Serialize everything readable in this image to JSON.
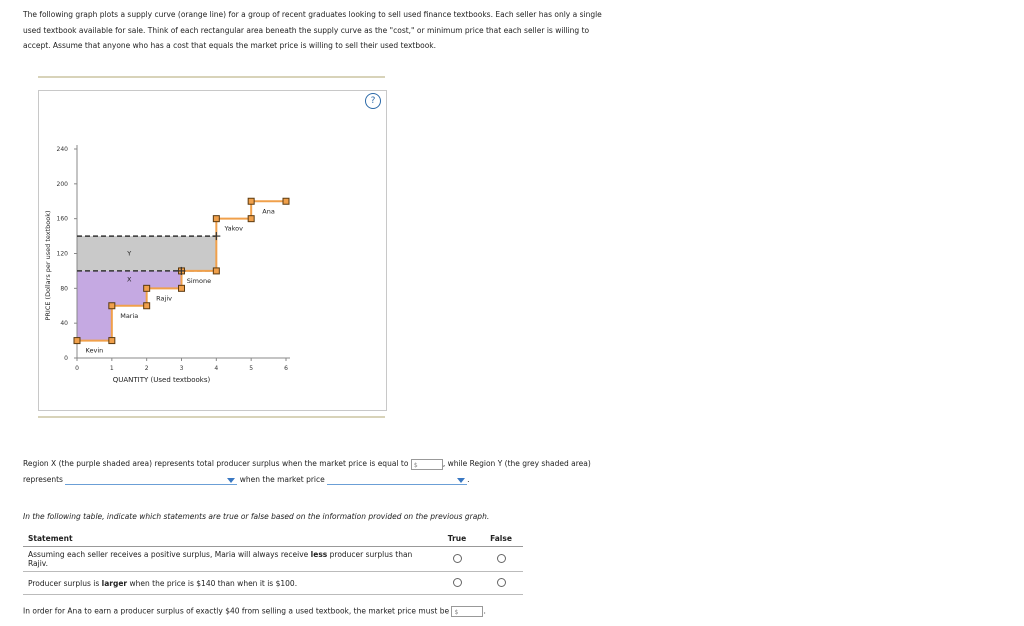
{
  "intro_text": "The following graph plots a supply curve (orange line) for a group of recent graduates looking to sell used finance textbooks. Each seller has only a single used textbook available for sale. Think of each rectangular area beneath the supply curve as the \"cost,\" or minimum price that each seller is willing to accept. Assume that anyone who has a cost that equals the market price is willing to sell their used textbook.",
  "help_label": "?",
  "chart_data": {
    "type": "line",
    "xlabel": "QUANTITY (Used textbooks)",
    "ylabel": "PRICE (Dollars per used textbook)",
    "xlim": [
      0,
      6
    ],
    "ylim": [
      0,
      240
    ],
    "x_ticks": [
      "0",
      "1",
      "2",
      "3",
      "4",
      "5",
      "6"
    ],
    "y_ticks": [
      "0",
      "40",
      "80",
      "120",
      "160",
      "200",
      "240"
    ],
    "supply_steps": [
      {
        "name": "Kevin",
        "q_start": 0,
        "q_end": 1,
        "price": 20
      },
      {
        "name": "Maria",
        "q_start": 1,
        "q_end": 2,
        "price": 60
      },
      {
        "name": "Rajiv",
        "q_start": 2,
        "q_end": 3,
        "price": 80
      },
      {
        "name": "Simone",
        "q_start": 3,
        "q_end": 4,
        "price": 100
      },
      {
        "name": "Yakov",
        "q_start": 4,
        "q_end": 5,
        "price": 160
      },
      {
        "name": "Ana",
        "q_start": 5,
        "q_end": 6,
        "price": 180
      }
    ],
    "price_lines": [
      100,
      140
    ],
    "regions": [
      {
        "label": "X",
        "color": "#c5a9e2",
        "lower_price": 0,
        "upper_price": 100
      },
      {
        "label": "Y",
        "color": "#c9c9c9",
        "lower_price": 100,
        "upper_price": 140
      }
    ],
    "curve_color": "#f0a04b",
    "point_color": "#f0a04b"
  },
  "region_q": {
    "part1": "Region X (the purple shaded area) represents total producer surplus when the market price is equal to",
    "input_placeholder": "$",
    "part2": ", while Region Y (the grey shaded area) represents",
    "part3": "when the market price",
    "part4": "."
  },
  "table_intro": "In the following table, indicate which statements are true or false based on the information provided on the previous graph.",
  "table": {
    "headers": {
      "statement": "Statement",
      "true": "True",
      "false": "False"
    },
    "rows": [
      {
        "pre": "Assuming each seller receives a positive surplus, Maria will always receive ",
        "bold": "less",
        "post": " producer surplus than Rajiv."
      },
      {
        "pre": "Producer surplus is ",
        "bold": "larger",
        "post": " when the price is $140 than when it is $100."
      }
    ]
  },
  "final_q": {
    "text": "In order for Ana to earn a producer surplus of exactly $40 from selling a used textbook, the market price must be",
    "input_placeholder": "$",
    "end": "."
  }
}
